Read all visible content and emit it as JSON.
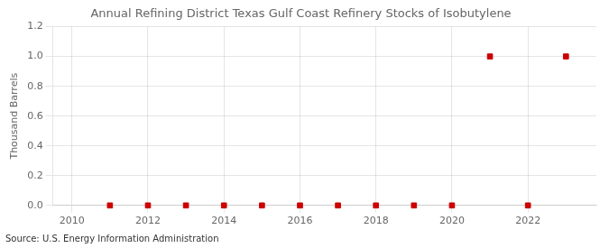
{
  "chart_data": {
    "type": "scatter",
    "title": "Annual Refining District Texas Gulf Coast Refinery Stocks of Isobutylene",
    "ylabel": "Thousand Barrels",
    "source": "Source: U.S. Energy Information Administration",
    "x": [
      2011,
      2012,
      2013,
      2014,
      2015,
      2016,
      2017,
      2018,
      2019,
      2020,
      2021,
      2022,
      2023
    ],
    "values": [
      0.0,
      0.0,
      0.0,
      0.0,
      0.0,
      0.0,
      0.0,
      0.0,
      0.0,
      0.0,
      1.0,
      0.0,
      1.0
    ],
    "color": "#cc0000",
    "marker": "square",
    "xlim": [
      2009.5,
      2023.8
    ],
    "xticks": [
      2010,
      2012,
      2014,
      2016,
      2018,
      2020,
      2022
    ],
    "ylim": [
      0,
      1.2
    ],
    "yticks": [
      {
        "value": 0,
        "label": "0.0"
      },
      0.2,
      0.4,
      0.6,
      0.8,
      {
        "value": 1,
        "label": "1.0"
      },
      1.2
    ],
    "grid": true
  }
}
